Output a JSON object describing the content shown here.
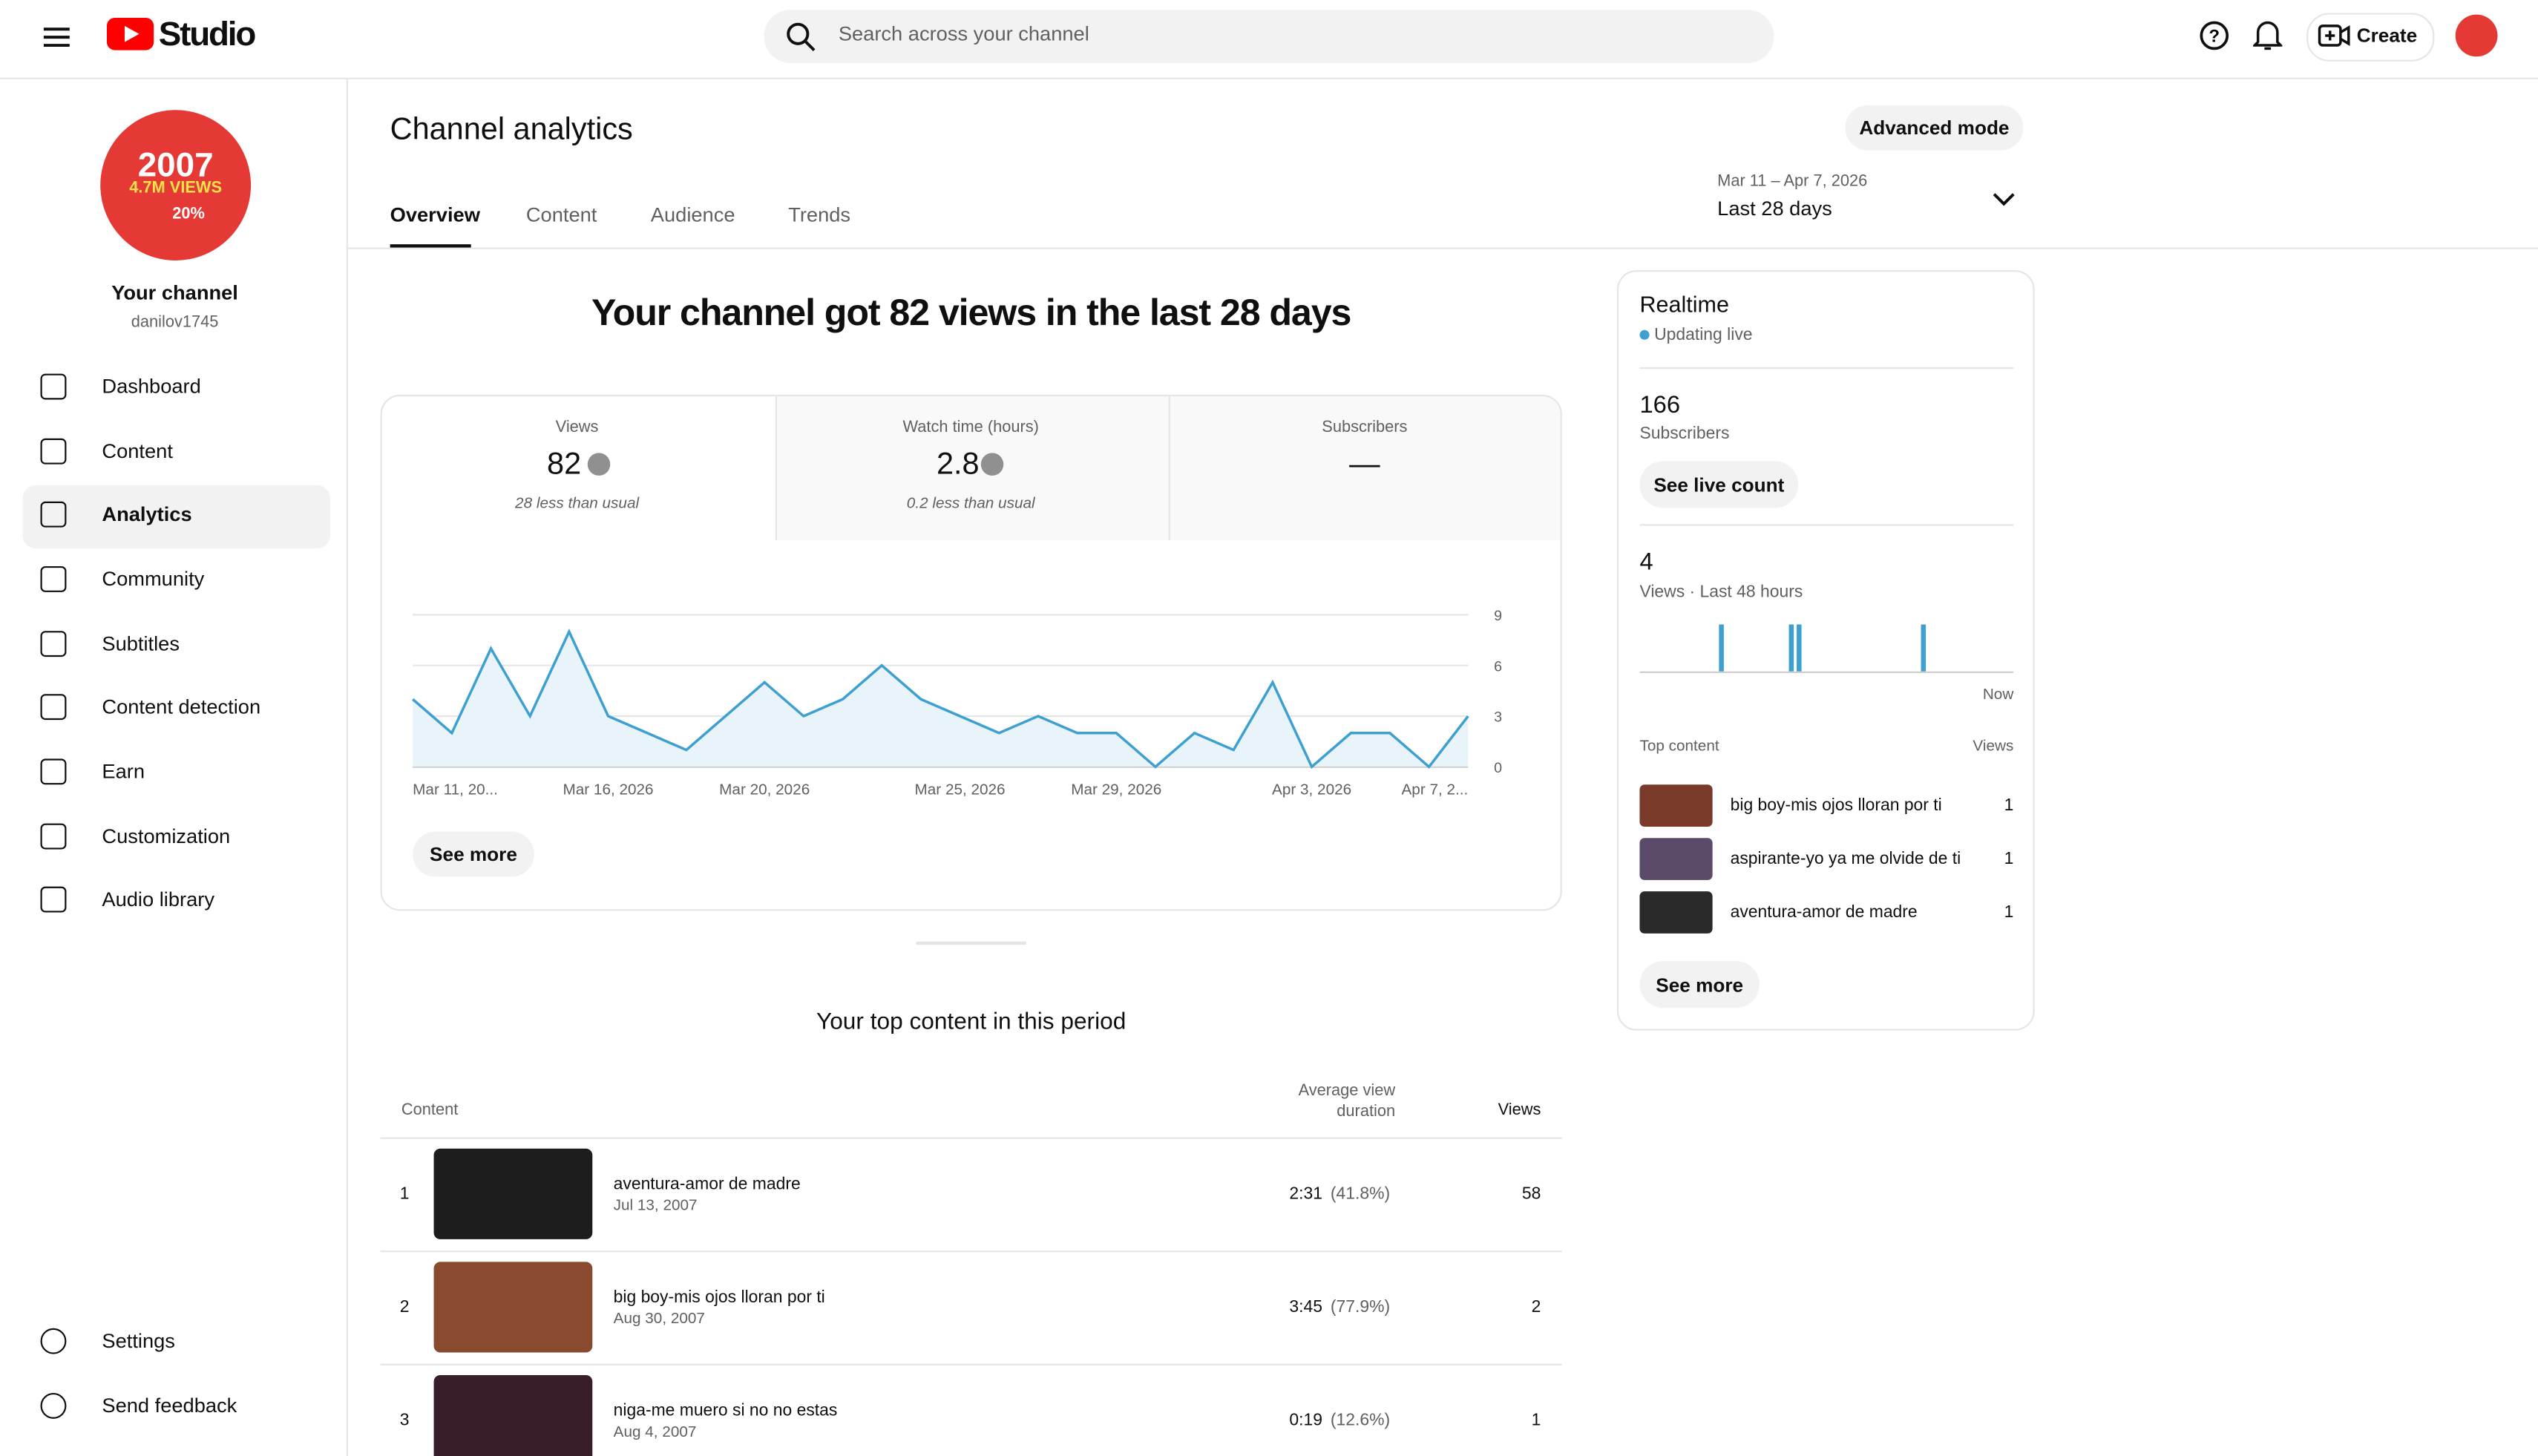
{
  "header": {
    "logo": "Studio",
    "search_placeholder": "Search across your channel",
    "create": "Create"
  },
  "sidebar": {
    "avatar_year": "2007",
    "avatar_views": "4.7M VIEWS",
    "avatar_percent": "20%",
    "channel_title": "Your channel",
    "channel_handle": "danilov1745",
    "nav": [
      "Dashboard",
      "Content",
      "Analytics",
      "Community",
      "Subtitles",
      "Content detection",
      "Earn",
      "Customization",
      "Audio library"
    ],
    "footer_nav": [
      "Settings",
      "Send feedback"
    ]
  },
  "page": {
    "title": "Channel analytics",
    "advanced_mode": "Advanced mode",
    "tabs": [
      "Overview",
      "Content",
      "Audience",
      "Trends"
    ],
    "date_range": "Mar 11 – Apr 7, 2026",
    "period": "Last 28 days"
  },
  "overview": {
    "headline": "Your channel got 82 views in the last 28 days",
    "metrics": [
      {
        "label": "Views",
        "value": "82",
        "note": "28 less than usual"
      },
      {
        "label": "Watch time (hours)",
        "value": "2.8",
        "note": "0.2 less than usual"
      },
      {
        "label": "Subscribers",
        "value": "—"
      }
    ],
    "see_more": "See more"
  },
  "chart_data": {
    "type": "line",
    "categories": [
      "Mar 11, 20...",
      null,
      null,
      null,
      null,
      "Mar 16, 2026",
      null,
      null,
      null,
      "Mar 20, 2026",
      null,
      null,
      null,
      null,
      "Mar 25, 2026",
      null,
      null,
      null,
      "Mar 29, 2026",
      null,
      null,
      null,
      null,
      "Apr 3, 2026",
      null,
      null,
      null,
      "Apr 7, 2..."
    ],
    "values": [
      4,
      2,
      7,
      3,
      8,
      3,
      2,
      1,
      3,
      5,
      3,
      4,
      6,
      4,
      3,
      2,
      3,
      2,
      2,
      0,
      2,
      1,
      5,
      0,
      2,
      2,
      0,
      3
    ],
    "color": "#3ea0d1",
    "ylim": [
      0,
      9
    ],
    "yticks": [
      0,
      3,
      6,
      9
    ],
    "grid": true
  },
  "realtime": {
    "title": "Realtime",
    "status": "Updating live",
    "subscribers": "166",
    "subscribers_label": "Subscribers",
    "see_live_count": "See live count",
    "views": "4",
    "views_label": "Views · Last 48 hours",
    "now_label": "Now",
    "hourly_views": [
      0,
      0,
      0,
      0,
      0,
      0,
      0,
      0,
      0,
      0,
      1,
      0,
      0,
      0,
      0,
      0,
      0,
      0,
      0,
      1,
      1,
      0,
      0,
      0,
      0,
      0,
      0,
      0,
      0,
      0,
      0,
      0,
      0,
      0,
      0,
      0,
      1,
      0,
      0,
      0,
      0,
      0,
      0,
      0,
      0,
      0,
      0,
      0
    ],
    "top_content_label": "Top content",
    "views_column": "Views",
    "items": [
      {
        "title": "big boy-mis ojos lloran por ti",
        "views": "1"
      },
      {
        "title": "aspirante-yo ya me olvide de ti",
        "views": "1"
      },
      {
        "title": "aventura-amor de madre",
        "views": "1"
      }
    ],
    "see_more": "See more"
  },
  "top_content": {
    "title": "Your top content in this period",
    "columns": [
      "Content",
      "Average view duration",
      "Views"
    ],
    "rows": [
      {
        "rank": "1",
        "title": "aventura-amor de madre",
        "date": "Jul 13, 2007",
        "duration": "2:31",
        "percent": "(41.8%)",
        "views": "58"
      },
      {
        "rank": "2",
        "title": "big boy-mis ojos lloran por ti",
        "date": "Aug 30, 2007",
        "duration": "3:45",
        "percent": "(77.9%)",
        "views": "2"
      },
      {
        "rank": "3",
        "title": "niga-me muero si no no estas",
        "date": "Aug 4, 2007",
        "duration": "0:19",
        "percent": "(12.6%)",
        "views": "1"
      }
    ]
  }
}
